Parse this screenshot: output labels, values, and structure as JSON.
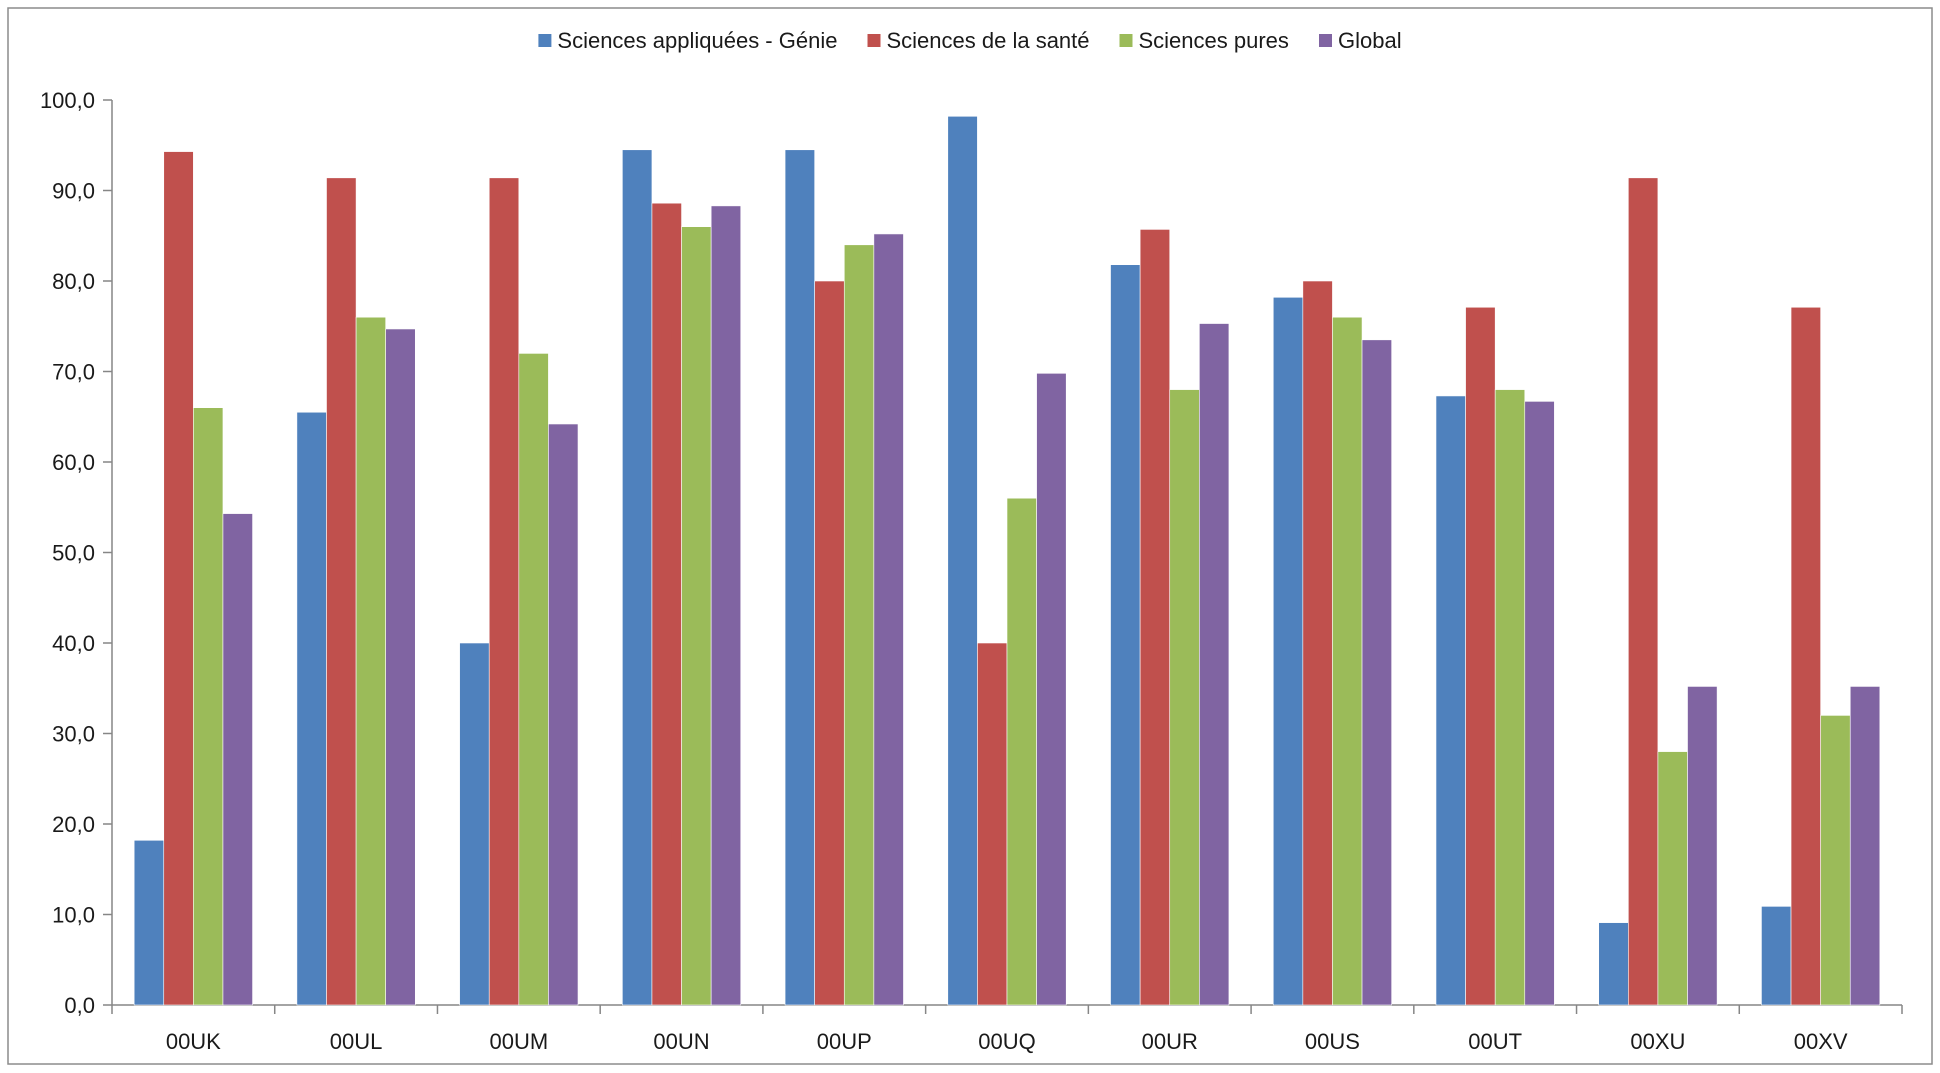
{
  "chart_data": {
    "type": "bar",
    "categories": [
      "00UK",
      "00UL",
      "00UM",
      "00UN",
      "00UP",
      "00UQ",
      "00UR",
      "00US",
      "00UT",
      "00XU",
      "00XV"
    ],
    "series": [
      {
        "name": "Sciences appliquées - Génie",
        "color": "#4f81bd",
        "values": [
          18.2,
          65.5,
          40.0,
          94.5,
          94.5,
          98.2,
          81.8,
          78.2,
          67.3,
          9.1,
          10.9
        ]
      },
      {
        "name": "Sciences de la santé",
        "color": "#c0504d",
        "values": [
          94.3,
          91.4,
          91.4,
          88.6,
          80.0,
          40.0,
          85.7,
          80.0,
          77.1,
          91.4,
          77.1
        ]
      },
      {
        "name": "Sciences pures",
        "color": "#9bbb59",
        "values": [
          66.0,
          76.0,
          72.0,
          86.0,
          84.0,
          56.0,
          68.0,
          76.0,
          68.0,
          28.0,
          32.0
        ]
      },
      {
        "name": "Global",
        "color": "#8064a2",
        "values": [
          54.3,
          74.7,
          64.2,
          88.3,
          85.2,
          69.8,
          75.3,
          73.5,
          66.7,
          35.2,
          35.2
        ]
      }
    ],
    "yticks": [
      "0,0",
      "10,0",
      "20,0",
      "30,0",
      "40,0",
      "50,0",
      "60,0",
      "70,0",
      "80,0",
      "90,0",
      "100,0"
    ],
    "ylim": [
      0,
      100
    ],
    "title": "",
    "xlabel": "",
    "ylabel": "",
    "grid": false,
    "legend_position": "top"
  }
}
